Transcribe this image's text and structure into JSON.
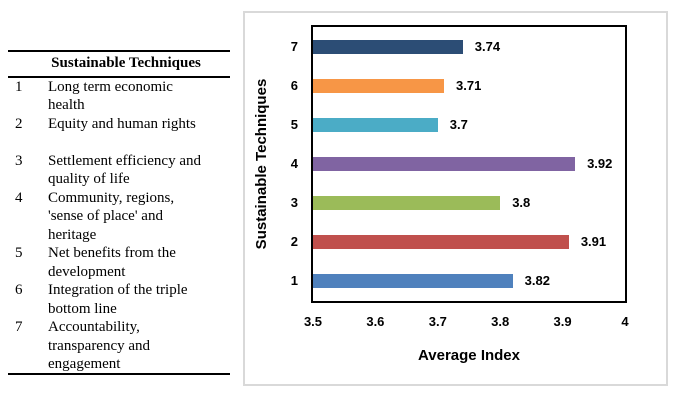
{
  "table": {
    "header": "Sustainable Techniques",
    "rows": [
      {
        "num": "1",
        "text": "Long term economic\nhealth"
      },
      {
        "num": "2",
        "text": "Equity and human rights"
      },
      {
        "num": "3",
        "text": "Settlement efficiency and\nquality of life"
      },
      {
        "num": "4",
        "text": "Community, regions,\n'sense of place' and\nheritage"
      },
      {
        "num": "5",
        "text": "Net benefits from the\ndevelopment"
      },
      {
        "num": "6",
        "text": "Integration of the triple\nbottom line"
      },
      {
        "num": "7",
        "text": "Accountability,\ntransparency and\nengagement"
      }
    ]
  },
  "chart_data": {
    "type": "bar",
    "orientation": "horizontal",
    "title": "",
    "xlabel": "Average Index",
    "ylabel": "Sustainable Techniques",
    "categories": [
      "1",
      "2",
      "3",
      "4",
      "5",
      "6",
      "7"
    ],
    "values": [
      3.82,
      3.91,
      3.8,
      3.92,
      3.7,
      3.71,
      3.74
    ],
    "value_labels": [
      "3.82",
      "3.91",
      "3.8",
      "3.92",
      "3.7",
      "3.71",
      "3.74"
    ],
    "bar_colors": [
      "#4F81BD",
      "#C0504D",
      "#9BBB59",
      "#8064A2",
      "#4BACC6",
      "#F79646",
      "#2C4D75"
    ],
    "xlim": [
      3.5,
      4.0
    ],
    "xticks": [
      3.5,
      3.6,
      3.7,
      3.8,
      3.9,
      4
    ],
    "xtick_labels": [
      "3.5",
      "3.6",
      "3.7",
      "3.8",
      "3.9",
      "4"
    ],
    "grid": false,
    "legend": false,
    "category_order": "7 at top, 1 at bottom",
    "plot_border_color": "#000000",
    "frame_border_color": "#D9D9D9"
  }
}
